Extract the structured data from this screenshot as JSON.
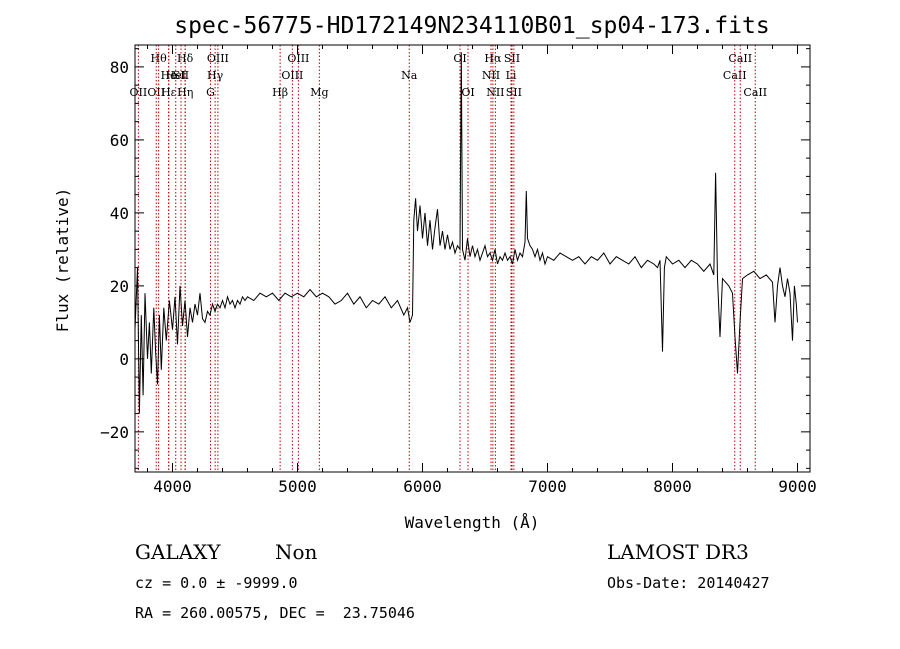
{
  "chart_data": {
    "type": "line",
    "title": "spec-56775-HD172149N234110B01_sp04-173.fits",
    "xlabel": "Wavelength (Å)",
    "ylabel": "Flux (relative)",
    "xlim": [
      3700,
      9100
    ],
    "ylim": [
      -31,
      86
    ],
    "xticks": [
      4000,
      5000,
      6000,
      7000,
      8000,
      9000
    ],
    "yticks": [
      -20,
      0,
      20,
      40,
      60,
      80
    ],
    "grid": false,
    "series": [
      {
        "name": "flux",
        "color": "#000000",
        "points": [
          [
            3700,
            8
          ],
          [
            3720,
            25
          ],
          [
            3735,
            -15
          ],
          [
            3750,
            12
          ],
          [
            3765,
            -10
          ],
          [
            3780,
            18
          ],
          [
            3800,
            0
          ],
          [
            3815,
            10
          ],
          [
            3830,
            -4
          ],
          [
            3850,
            14
          ],
          [
            3865,
            2
          ],
          [
            3880,
            -7
          ],
          [
            3895,
            12
          ],
          [
            3910,
            -3
          ],
          [
            3930,
            14
          ],
          [
            3950,
            5
          ],
          [
            3975,
            16
          ],
          [
            4000,
            8
          ],
          [
            4020,
            17
          ],
          [
            4040,
            4
          ],
          [
            4060,
            20
          ],
          [
            4080,
            9
          ],
          [
            4100,
            16
          ],
          [
            4120,
            6
          ],
          [
            4140,
            14
          ],
          [
            4160,
            10
          ],
          [
            4180,
            15
          ],
          [
            4200,
            12
          ],
          [
            4220,
            18
          ],
          [
            4240,
            11
          ],
          [
            4260,
            10
          ],
          [
            4280,
            13
          ],
          [
            4300,
            12
          ],
          [
            4320,
            15
          ],
          [
            4340,
            13
          ],
          [
            4360,
            15
          ],
          [
            4380,
            14
          ],
          [
            4400,
            16
          ],
          [
            4420,
            14
          ],
          [
            4440,
            17
          ],
          [
            4460,
            15
          ],
          [
            4480,
            16
          ],
          [
            4500,
            14
          ],
          [
            4520,
            16
          ],
          [
            4540,
            15
          ],
          [
            4560,
            17
          ],
          [
            4580,
            16
          ],
          [
            4600,
            17
          ],
          [
            4650,
            16
          ],
          [
            4700,
            18
          ],
          [
            4750,
            17
          ],
          [
            4800,
            18
          ],
          [
            4850,
            16
          ],
          [
            4900,
            18
          ],
          [
            4950,
            17
          ],
          [
            5000,
            18
          ],
          [
            5050,
            17
          ],
          [
            5100,
            19
          ],
          [
            5150,
            17
          ],
          [
            5200,
            18
          ],
          [
            5250,
            17
          ],
          [
            5300,
            15
          ],
          [
            5350,
            16
          ],
          [
            5400,
            18
          ],
          [
            5450,
            15
          ],
          [
            5500,
            17
          ],
          [
            5550,
            14
          ],
          [
            5600,
            16
          ],
          [
            5650,
            15
          ],
          [
            5700,
            17
          ],
          [
            5750,
            14
          ],
          [
            5800,
            16
          ],
          [
            5850,
            12
          ],
          [
            5880,
            14
          ],
          [
            5900,
            10
          ],
          [
            5920,
            12
          ],
          [
            5930,
            38
          ],
          [
            5945,
            44
          ],
          [
            5960,
            35
          ],
          [
            5980,
            42
          ],
          [
            6000,
            33
          ],
          [
            6020,
            40
          ],
          [
            6040,
            31
          ],
          [
            6060,
            38
          ],
          [
            6080,
            30
          ],
          [
            6100,
            36
          ],
          [
            6120,
            41
          ],
          [
            6140,
            31
          ],
          [
            6160,
            35
          ],
          [
            6180,
            30
          ],
          [
            6200,
            34
          ],
          [
            6220,
            30
          ],
          [
            6240,
            32
          ],
          [
            6260,
            29
          ],
          [
            6280,
            31
          ],
          [
            6300,
            30
          ],
          [
            6310,
            84
          ],
          [
            6320,
            30
          ],
          [
            6340,
            27
          ],
          [
            6360,
            33
          ],
          [
            6380,
            28
          ],
          [
            6400,
            31
          ],
          [
            6420,
            28
          ],
          [
            6440,
            30
          ],
          [
            6460,
            27
          ],
          [
            6480,
            29
          ],
          [
            6500,
            31
          ],
          [
            6520,
            28
          ],
          [
            6540,
            29
          ],
          [
            6560,
            27
          ],
          [
            6580,
            30
          ],
          [
            6600,
            26
          ],
          [
            6620,
            28
          ],
          [
            6640,
            27
          ],
          [
            6660,
            29
          ],
          [
            6680,
            27
          ],
          [
            6700,
            28
          ],
          [
            6720,
            26
          ],
          [
            6740,
            30
          ],
          [
            6760,
            27
          ],
          [
            6780,
            29
          ],
          [
            6800,
            28
          ],
          [
            6820,
            32
          ],
          [
            6830,
            46
          ],
          [
            6840,
            33
          ],
          [
            6860,
            31
          ],
          [
            6880,
            30
          ],
          [
            6900,
            28
          ],
          [
            6920,
            30
          ],
          [
            6940,
            27
          ],
          [
            6960,
            29
          ],
          [
            6980,
            26
          ],
          [
            7000,
            28
          ],
          [
            7050,
            27
          ],
          [
            7100,
            29
          ],
          [
            7150,
            28
          ],
          [
            7200,
            27
          ],
          [
            7250,
            28
          ],
          [
            7300,
            26
          ],
          [
            7350,
            28
          ],
          [
            7400,
            27
          ],
          [
            7450,
            29
          ],
          [
            7500,
            26
          ],
          [
            7550,
            28
          ],
          [
            7600,
            27
          ],
          [
            7650,
            26
          ],
          [
            7700,
            28
          ],
          [
            7750,
            25
          ],
          [
            7800,
            27
          ],
          [
            7850,
            26
          ],
          [
            7880,
            25
          ],
          [
            7900,
            27
          ],
          [
            7920,
            2
          ],
          [
            7935,
            25
          ],
          [
            7950,
            28
          ],
          [
            8000,
            26
          ],
          [
            8050,
            27
          ],
          [
            8100,
            25
          ],
          [
            8150,
            27
          ],
          [
            8200,
            26
          ],
          [
            8250,
            24
          ],
          [
            8300,
            26
          ],
          [
            8330,
            23
          ],
          [
            8345,
            51
          ],
          [
            8360,
            22
          ],
          [
            8380,
            6
          ],
          [
            8400,
            22
          ],
          [
            8450,
            20
          ],
          [
            8480,
            18
          ],
          [
            8500,
            6
          ],
          [
            8520,
            -4
          ],
          [
            8540,
            10
          ],
          [
            8560,
            22
          ],
          [
            8600,
            23
          ],
          [
            8650,
            24
          ],
          [
            8700,
            22
          ],
          [
            8750,
            23
          ],
          [
            8800,
            21
          ],
          [
            8820,
            10
          ],
          [
            8840,
            20
          ],
          [
            8860,
            25
          ],
          [
            8880,
            20
          ],
          [
            8900,
            17
          ],
          [
            8920,
            22
          ],
          [
            8940,
            18
          ],
          [
            8960,
            5
          ],
          [
            8975,
            20
          ],
          [
            8990,
            15
          ],
          [
            9000,
            10
          ]
        ]
      }
    ],
    "lines": [
      {
        "w": 3727,
        "label": "OII",
        "row": 2
      },
      {
        "w": 3870,
        "label": "OII",
        "row": 2
      },
      {
        "w": 3889,
        "label": "Hθ",
        "row": 0
      },
      {
        "w": 3969,
        "label": "He",
        "row": 1
      },
      {
        "w": 3970,
        "label": "Hε",
        "row": 2
      },
      {
        "w": 4026,
        "label": "HeI",
        "row": 1
      },
      {
        "w": 4068,
        "label": "SII",
        "row": 1
      },
      {
        "w": 4102,
        "label": "Hη",
        "row": 2
      },
      {
        "w": 4101,
        "label": "Hδ",
        "row": 0
      },
      {
        "w": 4304,
        "label": "G",
        "row": 2
      },
      {
        "w": 4341,
        "label": "Hγ",
        "row": 1
      },
      {
        "w": 4363,
        "label": "OIII",
        "row": 0
      },
      {
        "w": 4861,
        "label": "Hβ",
        "row": 2
      },
      {
        "w": 4959,
        "label": "OIII",
        "row": 1
      },
      {
        "w": 5007,
        "label": "OIII",
        "row": 0
      },
      {
        "w": 5175,
        "label": "Mg",
        "row": 2
      },
      {
        "w": 5894,
        "label": "Na",
        "row": 1
      },
      {
        "w": 6300,
        "label": "OI",
        "row": 0
      },
      {
        "w": 6364,
        "label": "OI",
        "row": 2
      },
      {
        "w": 6548,
        "label": "NII",
        "row": 1
      },
      {
        "w": 6563,
        "label": "Hα",
        "row": 0
      },
      {
        "w": 6583,
        "label": "NII",
        "row": 2
      },
      {
        "w": 6708,
        "label": "Li",
        "row": 1
      },
      {
        "w": 6716,
        "label": "SII",
        "row": 0
      },
      {
        "w": 6731,
        "label": "SII",
        "row": 2
      },
      {
        "w": 8498,
        "label": "CaII",
        "row": 1
      },
      {
        "w": 8542,
        "label": "CaII",
        "row": 0
      },
      {
        "w": 8662,
        "label": "CaII",
        "row": 2
      }
    ],
    "line_color": "#c00000"
  },
  "info": {
    "class_label": "GALAXY",
    "subclass_label": "Non",
    "cz_text": "cz = 0.0 ± -9999.0",
    "coords_text": "RA = 260.00575, DEC =  23.75046",
    "survey_label": "LAMOST DR3",
    "obs_date_text": "Obs-Date: 20140427"
  }
}
